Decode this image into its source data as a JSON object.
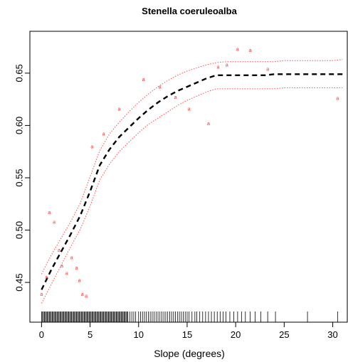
{
  "chart_data": {
    "type": "scatter",
    "title": "Stenella coeruleoalba",
    "xlabel": "Slope (degrees)",
    "ylabel": "",
    "xlim": [
      -1.2,
      31.5
    ],
    "ylim": [
      0.412,
      0.69
    ],
    "xticks": [
      "0",
      "5",
      "10",
      "15",
      "20",
      "25",
      "30"
    ],
    "yticks": [
      "0.45",
      "0.50",
      "0.55",
      "0.60",
      "0.65"
    ],
    "colors": {
      "points": "#ff2a2a",
      "fit": "#000000",
      "ci": "#ff4a4a",
      "axes": "#000000"
    },
    "point_marker": "a",
    "series": [
      {
        "type": "points",
        "x": [
          0.0,
          0.5,
          0.8,
          1.3,
          1.8,
          2.1,
          2.6,
          3.1,
          3.6,
          3.9,
          4.2,
          4.6,
          5.2,
          6.4,
          8.0,
          10.5,
          12.2,
          13.8,
          15.2,
          17.2,
          18.2,
          19.1,
          20.2,
          21.5,
          23.3,
          30.5
        ],
        "y": [
          0.439,
          0.455,
          0.517,
          0.508,
          0.481,
          0.466,
          0.459,
          0.474,
          0.464,
          0.452,
          0.439,
          0.437,
          0.58,
          0.592,
          0.616,
          0.644,
          0.637,
          0.627,
          0.616,
          0.602,
          0.656,
          0.658,
          0.673,
          0.672,
          0.654,
          0.626
        ]
      },
      {
        "type": "fit",
        "x": [
          0,
          1,
          2,
          3,
          4,
          5,
          6,
          7,
          8,
          9,
          10,
          11,
          12,
          13,
          14,
          15,
          16,
          17,
          18,
          19,
          20,
          21,
          22,
          23,
          24,
          25,
          26,
          27,
          28,
          29,
          30,
          31
        ],
        "y": [
          0.443,
          0.462,
          0.479,
          0.496,
          0.514,
          0.537,
          0.562,
          0.577,
          0.589,
          0.598,
          0.607,
          0.615,
          0.622,
          0.628,
          0.633,
          0.637,
          0.641,
          0.645,
          0.648,
          0.648,
          0.648,
          0.648,
          0.648,
          0.648,
          0.649,
          0.649,
          0.649,
          0.649,
          0.649,
          0.649,
          0.649,
          0.649
        ]
      },
      {
        "type": "upper",
        "x": [
          0,
          1,
          2,
          3,
          4,
          5,
          6,
          7,
          8,
          9,
          10,
          11,
          12,
          13,
          14,
          15,
          16,
          17,
          18,
          19,
          20,
          21,
          22,
          23,
          24,
          25,
          26,
          27,
          28,
          29,
          30,
          31
        ],
        "y": [
          0.458,
          0.476,
          0.492,
          0.508,
          0.526,
          0.551,
          0.576,
          0.592,
          0.603,
          0.613,
          0.622,
          0.63,
          0.637,
          0.643,
          0.648,
          0.652,
          0.655,
          0.658,
          0.66,
          0.661,
          0.661,
          0.661,
          0.661,
          0.661,
          0.661,
          0.662,
          0.662,
          0.662,
          0.662,
          0.662,
          0.662,
          0.663
        ]
      },
      {
        "type": "lower",
        "x": [
          0,
          1,
          2,
          3,
          4,
          5,
          6,
          7,
          8,
          9,
          10,
          11,
          12,
          13,
          14,
          15,
          16,
          17,
          18,
          19,
          20,
          21,
          22,
          23,
          24,
          25,
          26,
          27,
          28,
          29,
          30,
          31
        ],
        "y": [
          0.43,
          0.448,
          0.466,
          0.484,
          0.501,
          0.523,
          0.548,
          0.563,
          0.575,
          0.584,
          0.593,
          0.601,
          0.607,
          0.613,
          0.619,
          0.624,
          0.628,
          0.632,
          0.635,
          0.635,
          0.635,
          0.635,
          0.635,
          0.635,
          0.635,
          0.636,
          0.636,
          0.636,
          0.636,
          0.636,
          0.636,
          0.636
        ]
      }
    ],
    "rug": [
      0.0,
      0.1,
      0.2,
      0.3,
      0.4,
      0.5,
      0.6,
      0.7,
      0.8,
      0.9,
      1.0,
      1.1,
      1.2,
      1.3,
      1.4,
      1.5,
      1.6,
      1.7,
      1.8,
      1.9,
      2.0,
      2.1,
      2.2,
      2.3,
      2.4,
      2.5,
      2.6,
      2.7,
      2.8,
      2.9,
      3.0,
      3.1,
      3.2,
      3.3,
      3.4,
      3.5,
      3.6,
      3.7,
      3.8,
      3.9,
      4.0,
      4.1,
      4.2,
      4.3,
      4.4,
      4.5,
      4.6,
      4.7,
      4.8,
      4.9,
      5.0,
      5.1,
      5.2,
      5.3,
      5.4,
      5.5,
      5.6,
      5.7,
      5.8,
      5.9,
      6.0,
      6.1,
      6.2,
      6.3,
      6.4,
      6.5,
      6.6,
      6.7,
      6.8,
      6.9,
      7.0,
      7.1,
      7.2,
      7.3,
      7.4,
      7.5,
      7.6,
      7.7,
      7.8,
      7.9,
      8.0,
      8.1,
      8.2,
      8.3,
      8.4,
      8.5,
      8.6,
      8.7,
      8.8,
      8.9,
      9.1,
      9.3,
      9.5,
      9.7,
      10.0,
      10.2,
      10.4,
      10.6,
      10.8,
      11.0,
      11.2,
      11.4,
      11.6,
      11.8,
      12.0,
      12.2,
      12.4,
      12.6,
      12.8,
      13.0,
      13.2,
      13.4,
      13.6,
      13.8,
      14.0,
      14.2,
      14.4,
      14.6,
      14.8,
      15.0,
      15.2,
      15.5,
      15.8,
      16.0,
      16.3,
      16.6,
      16.9,
      17.2,
      17.5,
      17.8,
      18.1,
      18.4,
      18.7,
      19.0,
      19.4,
      19.8,
      20.2,
      20.6,
      21.0,
      21.5,
      22.0,
      22.6,
      23.3,
      24.1,
      27.4,
      30.5
    ]
  }
}
